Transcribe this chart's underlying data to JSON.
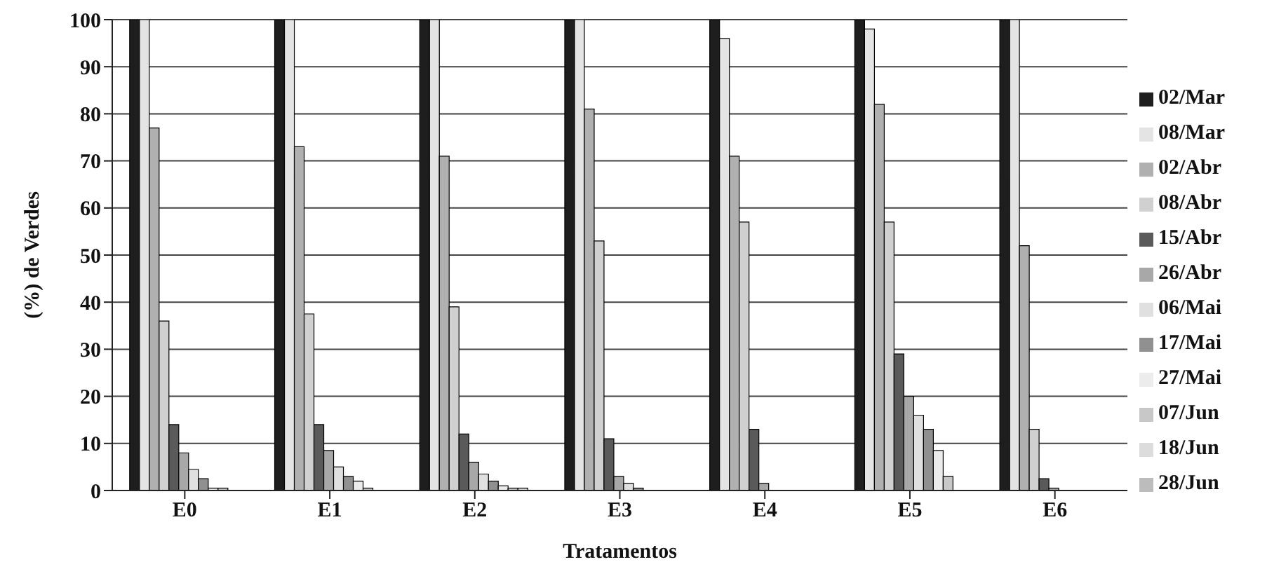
{
  "chart_data": {
    "type": "bar",
    "xlabel": "Tratamentos",
    "ylabel": "(%) de Verdes",
    "categories": [
      "E0",
      "E1",
      "E2",
      "E3",
      "E4",
      "E5",
      "E6"
    ],
    "series": [
      {
        "name": "02/Mar",
        "color": "#1e1e1e",
        "values": [
          100,
          100,
          100,
          100,
          100,
          100,
          100
        ]
      },
      {
        "name": "08/Mar",
        "color": "#e4e4e4",
        "values": [
          100,
          100,
          100,
          100,
          96,
          98,
          100
        ]
      },
      {
        "name": "02/Abr",
        "color": "#b0b0b0",
        "values": [
          77,
          73,
          71,
          81,
          71,
          82,
          52
        ]
      },
      {
        "name": "08/Abr",
        "color": "#d0d0d0",
        "values": [
          36,
          37.5,
          39,
          53,
          57,
          57,
          13
        ]
      },
      {
        "name": "15/Abr",
        "color": "#5a5a5a",
        "values": [
          14,
          14,
          12,
          11,
          13,
          29,
          2.5
        ]
      },
      {
        "name": "26/Abr",
        "color": "#a8a8a8",
        "values": [
          8,
          8.5,
          6,
          3,
          1.5,
          20,
          0.5
        ]
      },
      {
        "name": "06/Mai",
        "color": "#e0e0e0",
        "values": [
          4.5,
          5,
          3.5,
          1.5,
          0,
          16,
          0
        ]
      },
      {
        "name": "17/Mai",
        "color": "#909090",
        "values": [
          2.5,
          3,
          2,
          0.5,
          0,
          13,
          0
        ]
      },
      {
        "name": "27/Mai",
        "color": "#ececec",
        "values": [
          0.5,
          2,
          1,
          0,
          0,
          8.5,
          0
        ]
      },
      {
        "name": "07/Jun",
        "color": "#c8c8c8",
        "values": [
          0.5,
          0.5,
          0.5,
          0,
          0,
          3,
          0
        ]
      },
      {
        "name": "18/Jun",
        "color": "#dcdcdc",
        "values": [
          0,
          0,
          0.5,
          0,
          0,
          0,
          0
        ]
      },
      {
        "name": "28/Jun",
        "color": "#bcbcbc",
        "values": [
          0,
          0,
          0,
          0,
          0,
          0,
          0
        ]
      }
    ],
    "ylim": [
      0,
      100
    ],
    "yticks": [
      0,
      10,
      20,
      30,
      40,
      50,
      60,
      70,
      80,
      90,
      100
    ],
    "grid": "y",
    "legend": "right"
  }
}
